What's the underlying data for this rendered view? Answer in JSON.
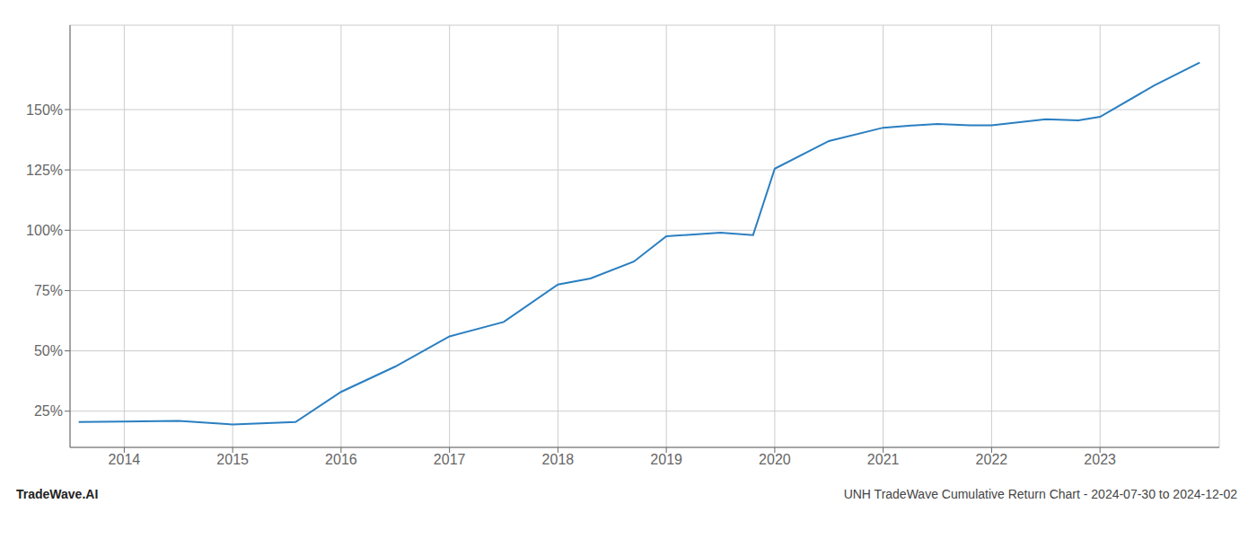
{
  "chart_data": {
    "type": "line",
    "annotations": [
      "TradeWave.AI",
      "UNH TradeWave Cumulative Return Chart - 2024-07-30 to 2024-12-02"
    ],
    "x": [
      2013.58,
      2014.0,
      2014.5,
      2015.0,
      2015.58,
      2016.0,
      2016.5,
      2017.0,
      2017.5,
      2018.0,
      2018.3,
      2018.7,
      2019.0,
      2019.5,
      2019.8,
      2020.0,
      2020.5,
      2021.0,
      2021.3,
      2021.5,
      2021.8,
      2022.0,
      2022.5,
      2022.8,
      2023.0,
      2023.5,
      2023.92
    ],
    "values": [
      0.205,
      0.207,
      0.21,
      0.195,
      0.205,
      0.33,
      0.435,
      0.56,
      0.62,
      0.775,
      0.8,
      0.87,
      0.975,
      0.99,
      0.98,
      1.255,
      1.37,
      1.425,
      1.435,
      1.44,
      1.435,
      1.435,
      1.46,
      1.455,
      1.47,
      1.6,
      1.695
    ],
    "color": "#2a7fc1",
    "xlim": [
      2013.5,
      2024.1
    ],
    "xticks": [
      2014,
      2015,
      2016,
      2017,
      2018,
      2019,
      2020,
      2021,
      2022,
      2023
    ],
    "ylim": [
      0.1,
      1.85
    ],
    "yticks": [
      {
        "value": 0.25,
        "label": "25%"
      },
      {
        "value": 0.5,
        "label": "50%"
      },
      {
        "value": 0.75,
        "label": "75%"
      },
      {
        "value": 1.0,
        "label": "100%"
      },
      {
        "value": 1.25,
        "label": "125%"
      },
      {
        "value": 1.5,
        "label": "150%"
      }
    ],
    "grid": true
  }
}
